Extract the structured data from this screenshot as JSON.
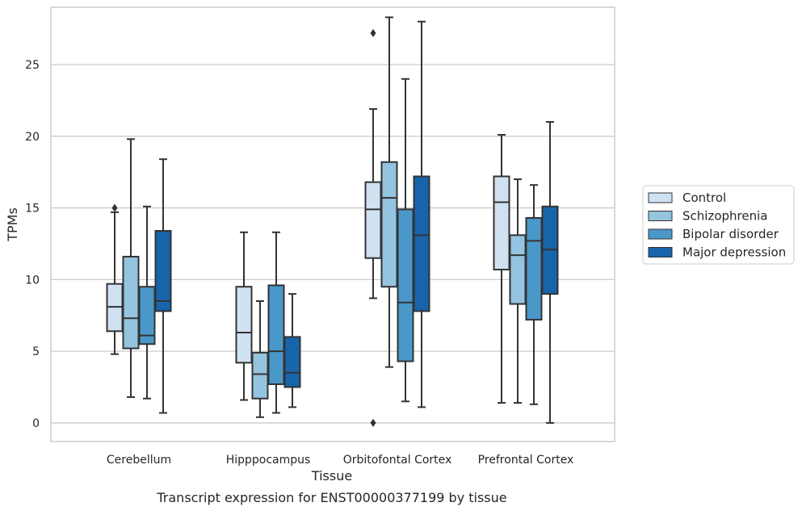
{
  "chart_data": {
    "type": "box",
    "title": "",
    "caption": "Transcript expression for ENST00000377199 by tissue",
    "xlabel": "Tissue",
    "ylabel": "TPMs",
    "ylim": [
      -1.3,
      29.0
    ],
    "yticks": [
      0,
      5,
      10,
      15,
      20,
      25
    ],
    "grid": "horizontal",
    "legend_placement": "right-center",
    "categories": [
      "Cerebellum",
      "Hipppocampus",
      "Orbitofontal Cortex",
      "Prefrontal Cortex"
    ],
    "colors": {
      "Control": "#d0e1f2",
      "Schizophrenia": "#94c4df",
      "Bipolar disorder": "#4a98c9",
      "Major depression": "#1764ab",
      "edge": "#333333",
      "grid": "#cccccc",
      "frame": "#cccccc"
    },
    "series": [
      {
        "name": "Control",
        "boxes": [
          {
            "whislo": 4.8,
            "q1": 6.4,
            "med": 8.1,
            "q3": 9.7,
            "whishi": 14.7,
            "fliers": [
              15.0
            ]
          },
          {
            "whislo": 1.6,
            "q1": 4.2,
            "med": 6.3,
            "q3": 9.5,
            "whishi": 13.3,
            "fliers": []
          },
          {
            "whislo": 8.7,
            "q1": 11.5,
            "med": 14.9,
            "q3": 16.8,
            "whishi": 21.9,
            "fliers": [
              27.2,
              0.0
            ]
          },
          {
            "whislo": 1.4,
            "q1": 10.7,
            "med": 15.4,
            "q3": 17.2,
            "whishi": 20.1,
            "fliers": []
          }
        ]
      },
      {
        "name": "Schizophrenia",
        "boxes": [
          {
            "whislo": 1.8,
            "q1": 5.2,
            "med": 7.3,
            "q3": 11.6,
            "whishi": 19.8,
            "fliers": []
          },
          {
            "whislo": 0.4,
            "q1": 1.7,
            "med": 3.4,
            "q3": 4.9,
            "whishi": 8.5,
            "fliers": []
          },
          {
            "whislo": 3.9,
            "q1": 9.5,
            "med": 15.7,
            "q3": 18.2,
            "whishi": 28.3,
            "fliers": []
          },
          {
            "whislo": 1.4,
            "q1": 8.3,
            "med": 11.7,
            "q3": 13.1,
            "whishi": 17.0,
            "fliers": []
          }
        ]
      },
      {
        "name": "Bipolar disorder",
        "boxes": [
          {
            "whislo": 1.7,
            "q1": 5.5,
            "med": 6.1,
            "q3": 9.5,
            "whishi": 15.1,
            "fliers": []
          },
          {
            "whislo": 0.7,
            "q1": 2.7,
            "med": 5.0,
            "q3": 9.6,
            "whishi": 13.3,
            "fliers": []
          },
          {
            "whislo": 1.5,
            "q1": 4.3,
            "med": 8.4,
            "q3": 14.9,
            "whishi": 24.0,
            "fliers": []
          },
          {
            "whislo": 1.3,
            "q1": 7.2,
            "med": 12.7,
            "q3": 14.3,
            "whishi": 16.6,
            "fliers": []
          }
        ]
      },
      {
        "name": "Major depression",
        "boxes": [
          {
            "whislo": 0.7,
            "q1": 7.8,
            "med": 8.5,
            "q3": 13.4,
            "whishi": 18.4,
            "fliers": []
          },
          {
            "whislo": 1.1,
            "q1": 2.5,
            "med": 3.5,
            "q3": 6.0,
            "whishi": 9.0,
            "fliers": []
          },
          {
            "whislo": 1.1,
            "q1": 7.8,
            "med": 13.1,
            "q3": 17.2,
            "whishi": 28.0,
            "fliers": []
          },
          {
            "whislo": 0.0,
            "q1": 9.0,
            "med": 12.1,
            "q3": 15.1,
            "whishi": 21.0,
            "fliers": []
          }
        ]
      }
    ]
  }
}
